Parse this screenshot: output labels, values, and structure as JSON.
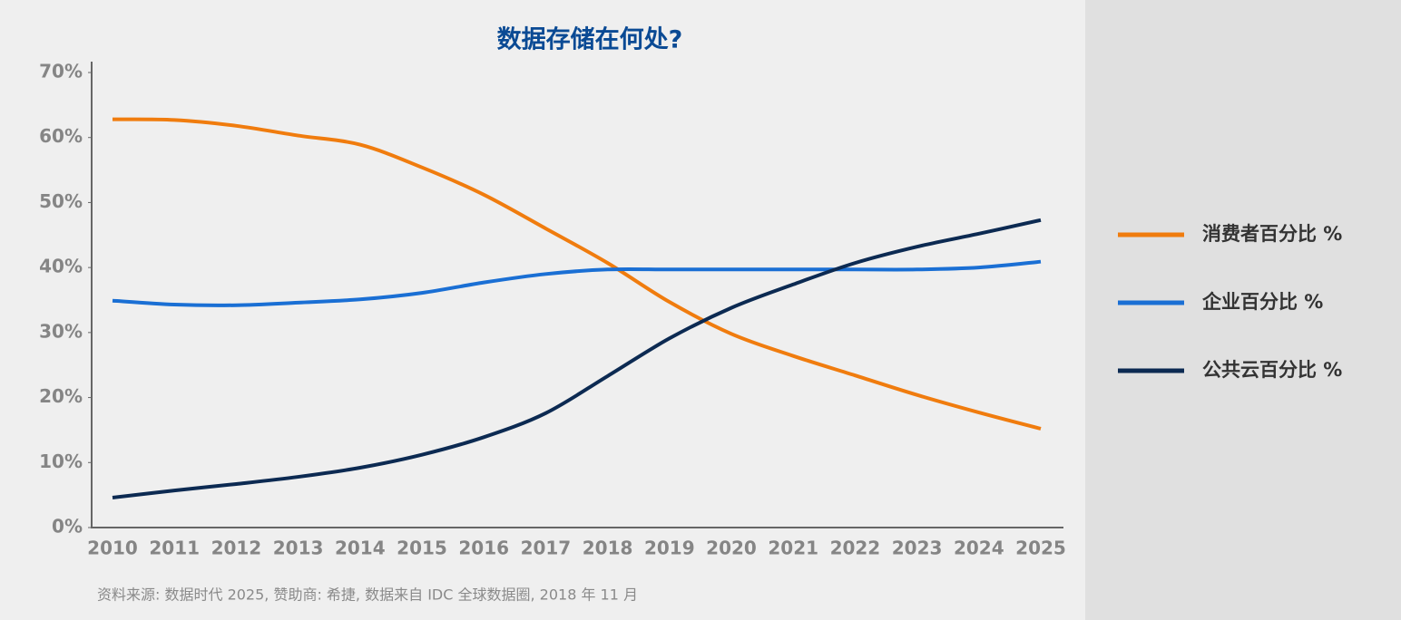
{
  "chart_data": {
    "type": "line",
    "title": "数据存储在何处?",
    "categories": [
      "2010",
      "2011",
      "2012",
      "2013",
      "2014",
      "2015",
      "2016",
      "2017",
      "2018",
      "2019",
      "2020",
      "2021",
      "2022",
      "2023",
      "2024",
      "2025"
    ],
    "series": [
      {
        "name": "消费者百分比 %",
        "color": "#f07c0e",
        "values": [
          62.8,
          62.7,
          61.8,
          60.3,
          58.9,
          55.4,
          51.2,
          46,
          40.7,
          34.7,
          29.8,
          26.4,
          23.4,
          20.4,
          17.7,
          15.2
        ]
      },
      {
        "name": "企业百分比 %",
        "color": "#1a6fd4",
        "values": [
          34.9,
          34.3,
          34.2,
          34.6,
          35.1,
          36.1,
          37.7,
          39,
          39.7,
          39.7,
          39.7,
          39.7,
          39.7,
          39.7,
          40,
          40.9
        ]
      },
      {
        "name": "公共云百分比 %",
        "color": "#0c2a52",
        "values": [
          4.6,
          5.7,
          6.7,
          7.8,
          9.2,
          11.2,
          13.9,
          17.6,
          23.3,
          29.1,
          33.8,
          37.4,
          40.7,
          43.2,
          45.2,
          47.3
        ]
      }
    ],
    "ylim": [
      0,
      70
    ],
    "yticks": [
      {
        "value": 0,
        "label": "0%"
      },
      {
        "value": 10,
        "label": "10%"
      },
      {
        "value": 20,
        "label": "20%"
      },
      {
        "value": 30,
        "label": "30%"
      },
      {
        "value": 40,
        "label": "40%"
      },
      {
        "value": 50,
        "label": "50%"
      },
      {
        "value": 60,
        "label": "60%"
      },
      {
        "value": 70,
        "label": "70%"
      }
    ],
    "legend": "right",
    "source": "资料来源: 数据时代 2025, 赞助商: 希捷, 数据来自 IDC 全球数据圈, 2018 年 11 月"
  }
}
